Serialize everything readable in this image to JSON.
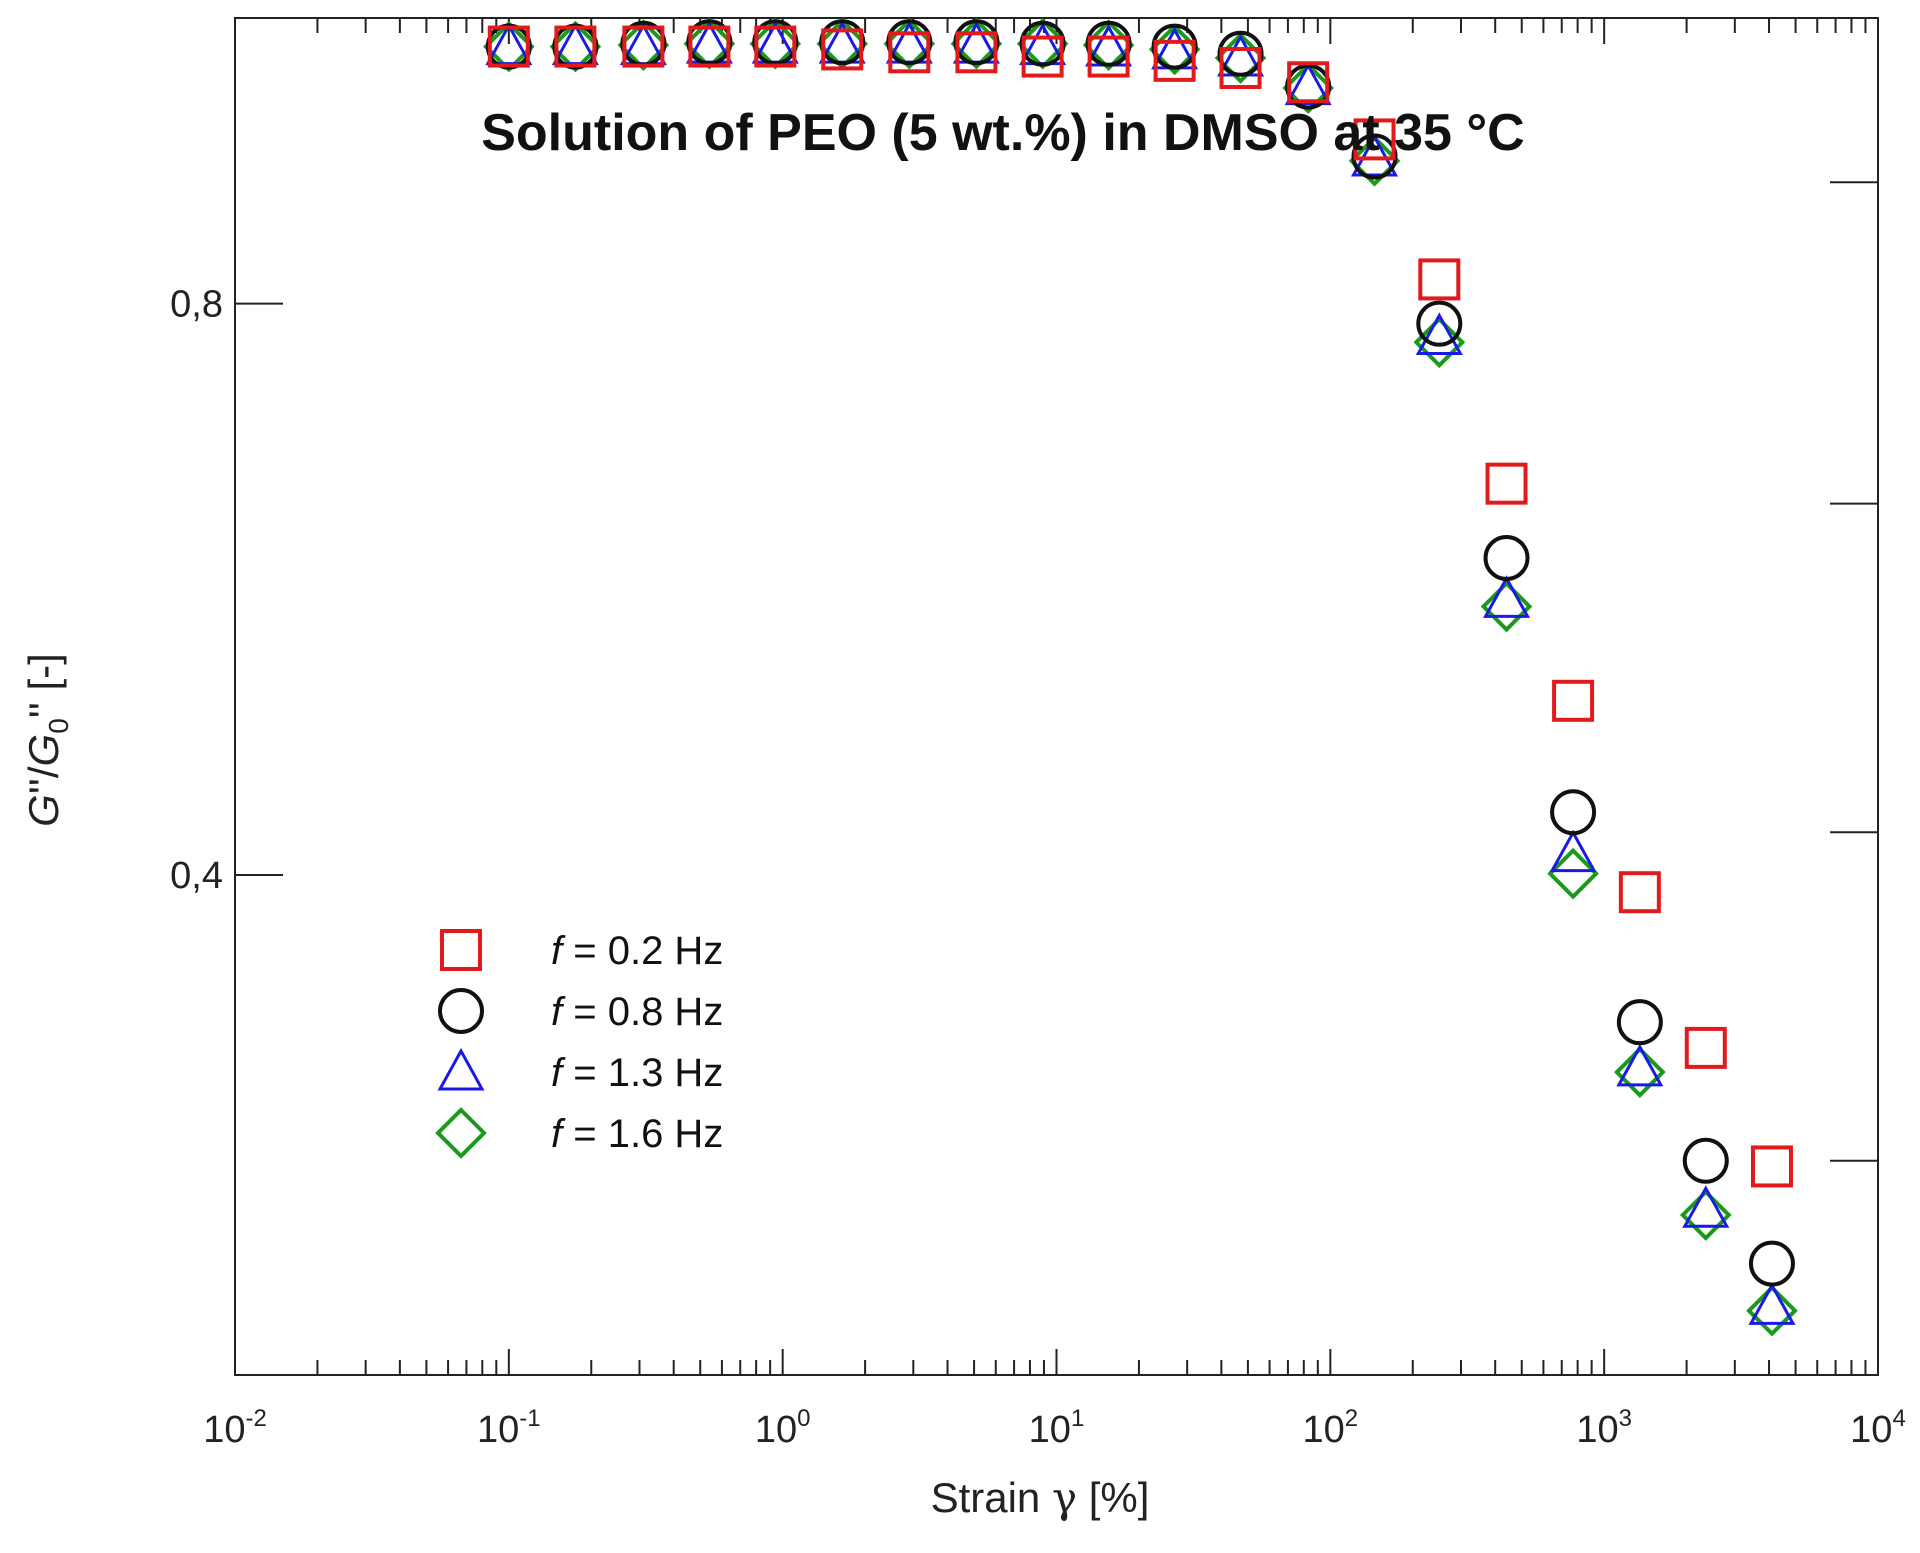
{
  "chart_data": {
    "type": "scatter",
    "title": "Solution of PEO (5 wt.%) in DMSO at 35 °C",
    "xlabel": "Strain γ [%]",
    "xlabel_parts": [
      "Strain ",
      "γ",
      " [%]"
    ],
    "ylabel": "G''/G0'' [-]",
    "ylabel_parts": [
      "G",
      "''/",
      "G",
      "0",
      "'' ",
      "[-]"
    ],
    "x_scale": "log",
    "xlim": [
      0.01,
      10000
    ],
    "ylim": [
      0.05,
      1.0
    ],
    "x_ticks": [
      {
        "base": "10",
        "exp": "-2",
        "value": 0.01
      },
      {
        "base": "10",
        "exp": "-1",
        "value": 0.1
      },
      {
        "base": "10",
        "exp": "0",
        "value": 1
      },
      {
        "base": "10",
        "exp": "1",
        "value": 10
      },
      {
        "base": "10",
        "exp": "2",
        "value": 100
      },
      {
        "base": "10",
        "exp": "3",
        "value": 1000
      },
      {
        "base": "10",
        "exp": "4",
        "value": 10000
      }
    ],
    "y_ticks": [
      {
        "label": "0,4",
        "value": 0.4
      },
      {
        "label": "0,8",
        "value": 0.8
      }
    ],
    "right_axis_ticks": [
      0.2,
      0.43,
      0.66,
      0.885
    ],
    "grid": false,
    "legend_position": "lower-left",
    "x": [
      0.1,
      0.175,
      0.31,
      0.54,
      0.94,
      1.65,
      2.9,
      5.1,
      8.9,
      15.5,
      27,
      47,
      83,
      145,
      250,
      440,
      770,
      1350,
      2350,
      4100
    ],
    "series": [
      {
        "name": "f = 0.2 Hz",
        "f_symbol": "f",
        "f_rest": " = 0.2 Hz",
        "marker": "square",
        "color": "#e31a1c",
        "values": [
          0.98,
          0.98,
          0.98,
          0.98,
          0.98,
          0.978,
          0.976,
          0.976,
          0.973,
          0.973,
          0.97,
          0.965,
          0.955,
          0.915,
          0.817,
          0.674,
          0.522,
          0.388,
          0.279,
          0.196
        ]
      },
      {
        "name": "f = 0.8 Hz",
        "f_symbol": "f",
        "f_rest": " = 0.8 Hz",
        "marker": "circle",
        "color": "#111111",
        "values": [
          0.98,
          0.98,
          0.982,
          0.983,
          0.983,
          0.983,
          0.983,
          0.983,
          0.982,
          0.982,
          0.98,
          0.975,
          0.952,
          0.903,
          0.786,
          0.622,
          0.444,
          0.297,
          0.2,
          0.128
        ]
      },
      {
        "name": "f = 1.3 Hz",
        "f_symbol": "f",
        "f_rest": " = 1.3 Hz",
        "marker": "triangle",
        "color": "#1a1ae6",
        "values": [
          0.98,
          0.98,
          0.98,
          0.981,
          0.981,
          0.981,
          0.981,
          0.981,
          0.98,
          0.979,
          0.977,
          0.972,
          0.952,
          0.902,
          0.777,
          0.593,
          0.415,
          0.265,
          0.166,
          0.098
        ]
      },
      {
        "name": "f = 1.6 Hz",
        "f_symbol": "f",
        "f_rest": " = 1.6 Hz",
        "marker": "diamond",
        "color": "#1a9a1a",
        "values": [
          0.98,
          0.98,
          0.981,
          0.982,
          0.982,
          0.982,
          0.982,
          0.982,
          0.982,
          0.981,
          0.978,
          0.972,
          0.951,
          0.9,
          0.773,
          0.588,
          0.401,
          0.262,
          0.162,
          0.095
        ]
      }
    ]
  }
}
